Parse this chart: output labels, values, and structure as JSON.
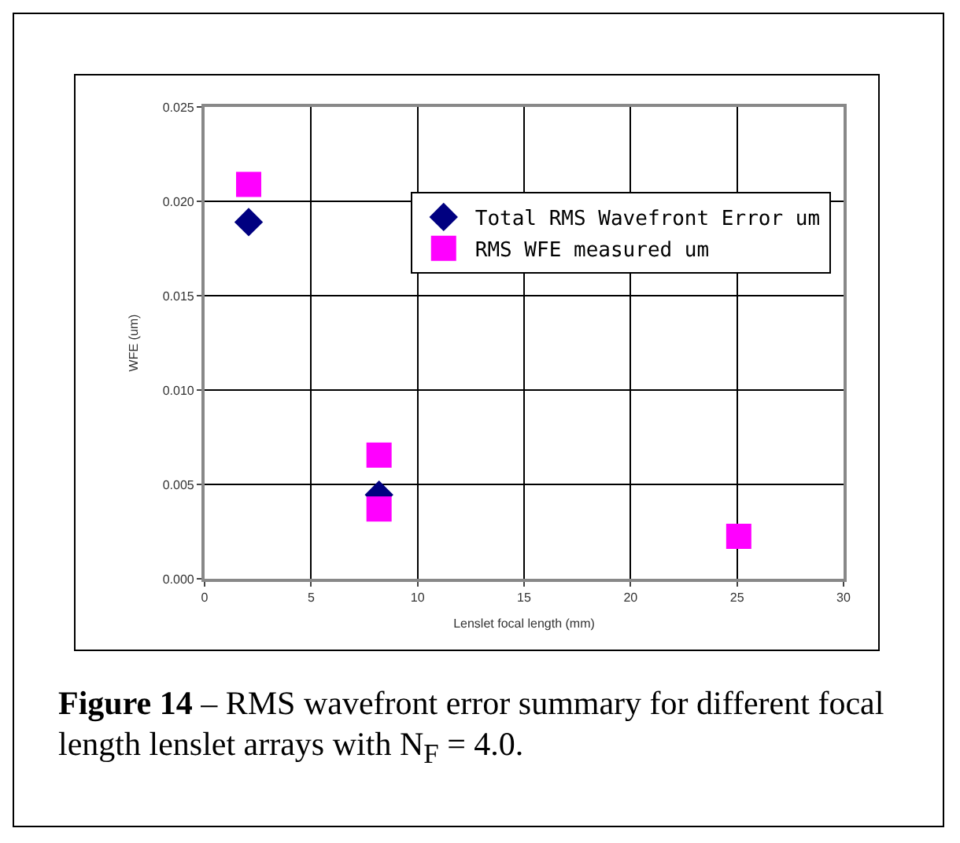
{
  "chart_data": {
    "type": "scatter",
    "xlabel": "Lenslet focal length (mm)",
    "ylabel": "WFE (um)",
    "series": [
      {
        "name": "Total RMS Wavefront Error um",
        "color": "#000080",
        "marker": "diamond",
        "x": [
          2.07,
          8.19
        ],
        "values": [
          0.0189,
          0.00445
        ]
      },
      {
        "name": "RMS WFE measured um",
        "color": "#ff00ff",
        "marker": "square",
        "x": [
          2.07,
          8.19,
          8.19,
          25.08
        ],
        "values": [
          0.0209,
          0.00655,
          0.0037,
          0.00225
        ]
      }
    ],
    "xlim": [
      0,
      30
    ],
    "xticks": [
      0,
      5,
      10,
      15,
      20,
      25,
      30
    ],
    "ylim": [
      0,
      0.025
    ],
    "yticks": [
      {
        "value": 0,
        "label": "0.000"
      },
      {
        "value": 0.005,
        "label": "0.005"
      },
      {
        "value": 0.01,
        "label": "0.010"
      },
      {
        "value": 0.015,
        "label": "0.015"
      },
      {
        "value": 0.02,
        "label": "0.020"
      },
      {
        "value": 0.025,
        "label": "0.025"
      }
    ],
    "grid": true,
    "legend": "top right",
    "annotations": [
      "Figure 14",
      "– RMS wavefront error summary for different focal length lenslet arrays with N$_{F}$ = 4.0."
    ]
  }
}
